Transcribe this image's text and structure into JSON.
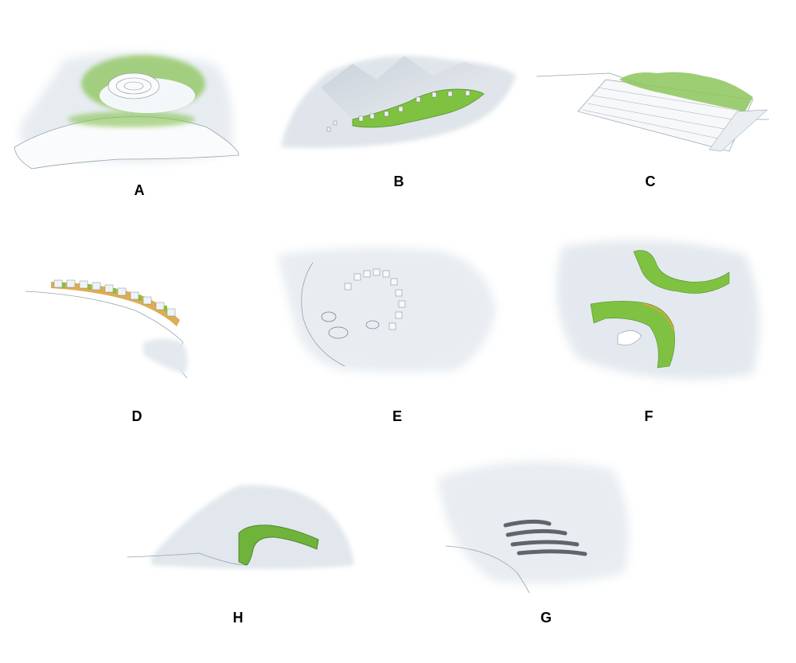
{
  "panels": [
    {
      "id": "A",
      "label": "A"
    },
    {
      "id": "B",
      "label": "B"
    },
    {
      "id": "C",
      "label": "C"
    },
    {
      "id": "D",
      "label": "D"
    },
    {
      "id": "E",
      "label": "E"
    },
    {
      "id": "F",
      "label": "F"
    },
    {
      "id": "H",
      "label": "H"
    },
    {
      "id": "G",
      "label": "G"
    }
  ],
  "colors": {
    "terrain_light": "#f3f6f9",
    "terrain_shadow": "#b9c3cd",
    "vegetation": "#7fc241",
    "vegetation_dark": "#4f8f2a",
    "coastline": "#9aa3ab",
    "shore_orange": "#d9a441",
    "structure_white": "#f7f9fb",
    "structure_grey": "#6d737a"
  }
}
